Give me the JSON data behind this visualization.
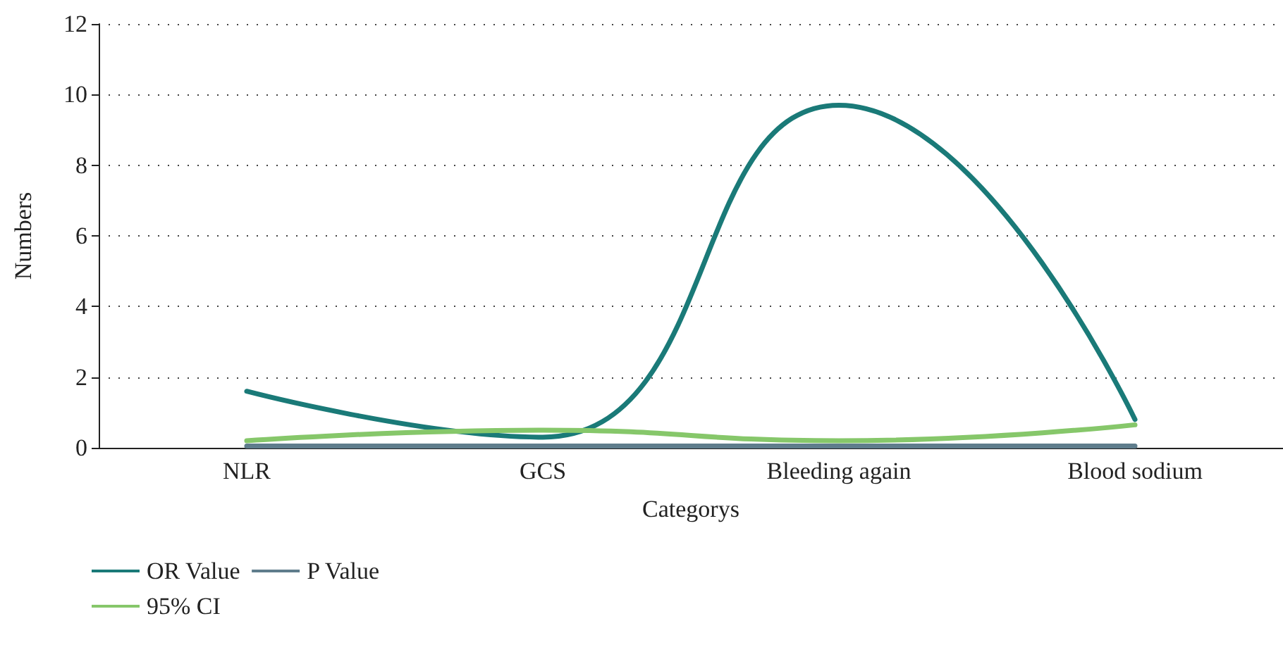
{
  "chart_data": {
    "type": "line",
    "xlabel": "Categorys",
    "ylabel": "Numbers",
    "categories": [
      "NLR",
      "GCS",
      "Bleeding again",
      "Blood sodium"
    ],
    "series": [
      {
        "name": "OR Value",
        "color": "#1a7a78",
        "values": [
          1.6,
          0.3,
          9.7,
          0.8
        ]
      },
      {
        "name": "95% CI",
        "color": "#86c76a",
        "values": [
          0.2,
          0.5,
          0.2,
          0.65
        ]
      },
      {
        "name": "P Value",
        "color": "#5f7d8c",
        "values": [
          0.05,
          0.05,
          0.05,
          0.05
        ]
      }
    ],
    "ylim": [
      0,
      12
    ],
    "yticks": [
      0,
      2,
      4,
      6,
      8,
      10,
      12
    ],
    "grid": "y",
    "legend": "bottom left",
    "marker": "none",
    "line_style": "solid"
  }
}
